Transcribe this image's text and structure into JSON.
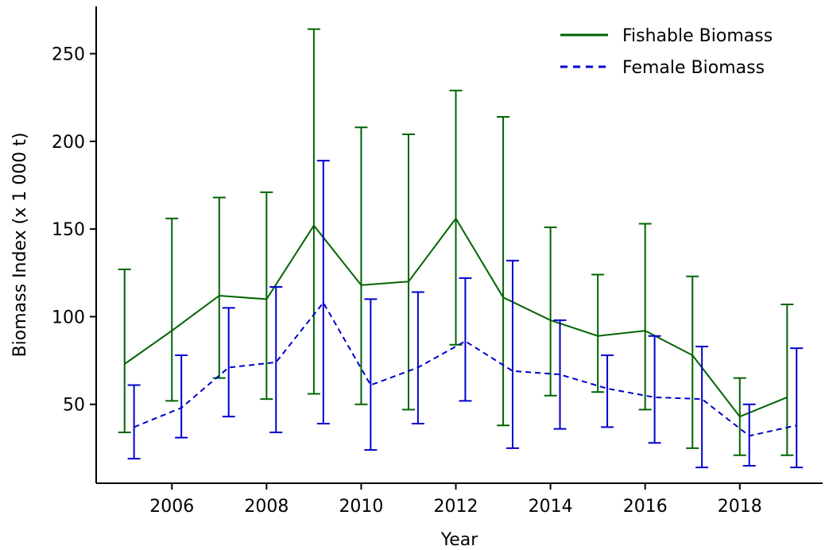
{
  "chart_data": {
    "type": "line",
    "title": "",
    "xlabel": "Year",
    "ylabel": "Biomass Index (x 1 000 t)",
    "xlim": [
      2004.4,
      2019.75
    ],
    "ylim": [
      5,
      277
    ],
    "x_ticks": [
      2006,
      2008,
      2010,
      2012,
      2014,
      2016,
      2018
    ],
    "y_ticks": [
      50,
      100,
      150,
      200,
      250
    ],
    "grid": false,
    "legend": {
      "placement": "top-right"
    },
    "series": [
      {
        "name": "Fishable Biomass",
        "color": "#006400",
        "line_style": "solid",
        "x_offset": 0,
        "x": [
          2005,
          2006,
          2007,
          2008,
          2009,
          2010,
          2011,
          2012,
          2013,
          2014,
          2015,
          2016,
          2017,
          2018,
          2019
        ],
        "values": [
          73,
          92,
          112,
          110,
          152,
          118,
          120,
          156,
          111,
          98,
          89,
          92,
          78,
          43,
          54
        ],
        "lower": [
          34,
          52,
          65,
          53,
          56,
          50,
          47,
          84,
          38,
          55,
          57,
          47,
          25,
          21,
          21
        ],
        "upper": [
          127,
          156,
          168,
          171,
          264,
          208,
          204,
          229,
          214,
          151,
          124,
          153,
          123,
          65,
          107
        ]
      },
      {
        "name": "Female Biomass",
        "color": "#0000cd",
        "line_style": "dashed",
        "x_offset": 0.2,
        "x": [
          2005,
          2006,
          2007,
          2008,
          2009,
          2010,
          2011,
          2012,
          2013,
          2014,
          2015,
          2016,
          2017,
          2018,
          2019
        ],
        "values": [
          37,
          48,
          71,
          74,
          108,
          61,
          71,
          86,
          69,
          67,
          59,
          54,
          53,
          32,
          38
        ],
        "lower": [
          19,
          31,
          43,
          34,
          39,
          24,
          39,
          52,
          25,
          36,
          37,
          28,
          14,
          15,
          14
        ],
        "upper": [
          61,
          78,
          105,
          117,
          189,
          110,
          114,
          122,
          132,
          98,
          78,
          89,
          83,
          50,
          82
        ]
      }
    ]
  }
}
